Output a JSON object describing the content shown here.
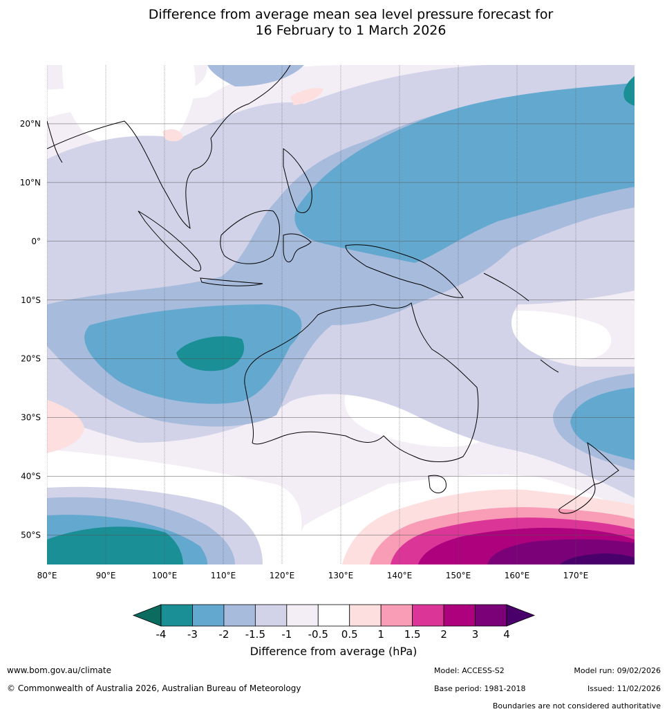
{
  "title": {
    "line1": "Difference from average mean sea level pressure forecast for",
    "line2": "16 February to 1 March 2026"
  },
  "map": {
    "lon_range": [
      80,
      180
    ],
    "lat_range": [
      -55,
      30
    ],
    "lon_ticks": [
      "80°E",
      "90°E",
      "100°E",
      "110°E",
      "120°E",
      "130°E",
      "140°E",
      "150°E",
      "160°E",
      "170°E"
    ],
    "lat_ticks": [
      "20°N",
      "10°N",
      "0°",
      "10°S",
      "20°S",
      "30°S",
      "40°S",
      "50°S"
    ]
  },
  "colorbar": {
    "title": "Difference from average (hPa)",
    "tick_labels": [
      "-4",
      "-3",
      "-2",
      "-1.5",
      "-1",
      "-0.5",
      "0.5",
      "1",
      "1.5",
      "2",
      "3",
      "4"
    ],
    "colors": {
      "lt_m4": "#0a6b5e",
      "m4_m3": "#1a9096",
      "m3_m2": "#63a9cf",
      "m2_m15": "#a7bbdc",
      "m15_m1": "#d2d3e8",
      "m1_m05": "#f3edf6",
      "m05_05": "#ffffff",
      "p05_1": "#fddfe0",
      "p1_15": "#f99cb5",
      "p15_2": "#db3597",
      "p2_3": "#ad017e",
      "p3_4": "#7a0177",
      "gt_4": "#4a006a"
    }
  },
  "footer": {
    "url": "www.bom.gov.au/climate",
    "copyright": "© Commonwealth of Australia 2026, Australian Bureau of Meteorology",
    "model": "Model: ACCESS-S2",
    "base_period": "Base period: 1981-2018",
    "model_run": "Model run: 09/02/2026",
    "issued": "Issued: 11/02/2026",
    "disclaimer": "Boundaries are not considered authoritative"
  }
}
